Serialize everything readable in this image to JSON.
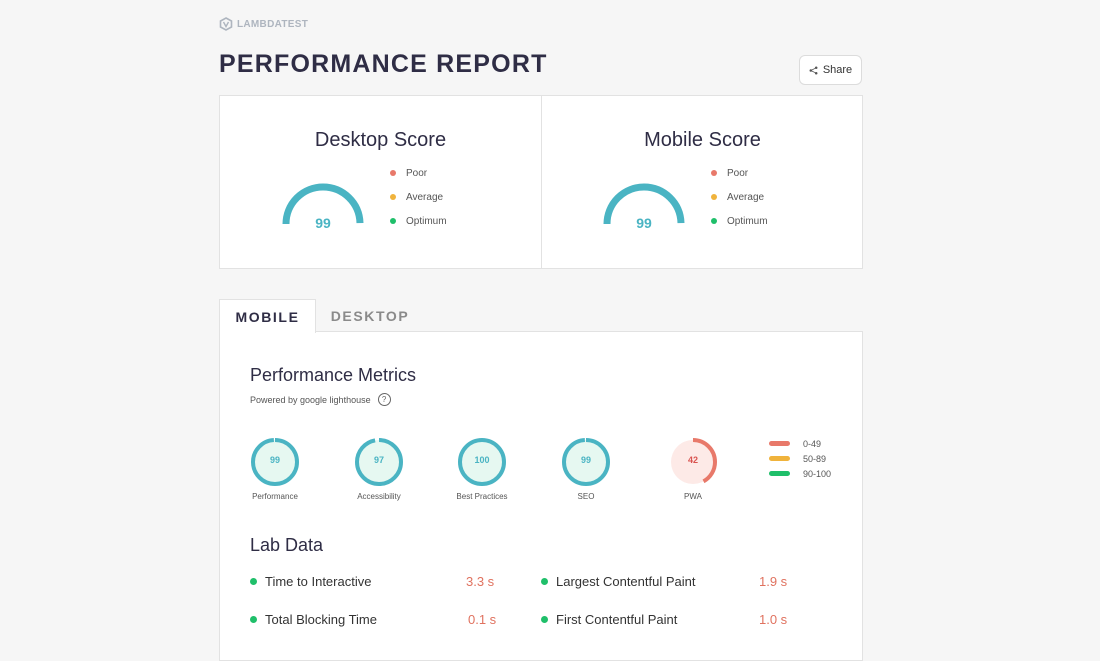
{
  "logo": {
    "text": "LAMBDATEST"
  },
  "page_title": "PERFORMANCE REPORT",
  "share": {
    "label": "Share"
  },
  "colors": {
    "poor": "#e8796a",
    "average": "#f0b33c",
    "optimum": "#1fbf6a",
    "accent": "#4ab4c3",
    "title": "#2f2d45"
  },
  "scores": {
    "desktop": {
      "title": "Desktop Score",
      "value": "99",
      "level": 0.99
    },
    "mobile": {
      "title": "Mobile Score",
      "value": "99",
      "level": 0.99
    },
    "legend": [
      "Poor",
      "Average",
      "Optimum"
    ]
  },
  "tabs": [
    {
      "label": "MOBILE",
      "active": true
    },
    {
      "label": "DESKTOP",
      "active": false
    }
  ],
  "performance_metrics": {
    "title": "Performance Metrics",
    "powered_by": "Powered by google lighthouse",
    "help_icon": "question-circle-icon",
    "metrics": [
      {
        "label": "Performance",
        "value": "99",
        "level": 0.99,
        "status": "optimum"
      },
      {
        "label": "Accessibility",
        "value": "97",
        "level": 0.97,
        "status": "optimum"
      },
      {
        "label": "Best Practices",
        "value": "100",
        "level": 1.0,
        "status": "optimum"
      },
      {
        "label": "SEO",
        "value": "99",
        "level": 0.99,
        "status": "optimum"
      },
      {
        "label": "PWA",
        "value": "42",
        "level": 0.42,
        "status": "poor"
      }
    ],
    "ranges": [
      "0-49",
      "50-89",
      "90-100"
    ]
  },
  "lab_data": {
    "title": "Lab Data",
    "left": [
      {
        "label": "Time to Interactive",
        "value": "3.3 s"
      },
      {
        "label": "Total Blocking Time",
        "value": "0.1 s"
      }
    ],
    "right": [
      {
        "label": "Largest Contentful Paint",
        "value": "1.9 s"
      },
      {
        "label": "First Contentful Paint",
        "value": "1.0 s"
      }
    ]
  }
}
